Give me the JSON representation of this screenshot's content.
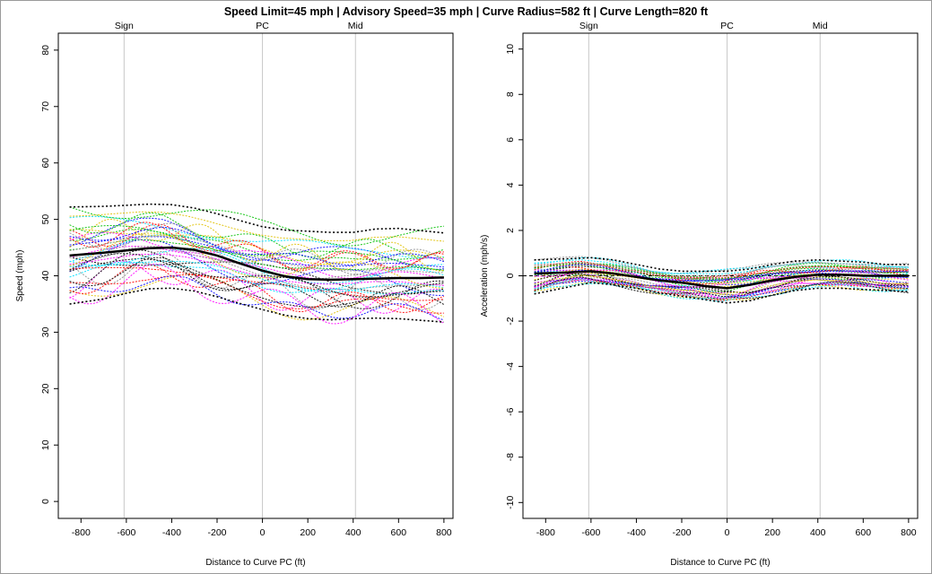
{
  "title": "Speed Limit=45 mph | Advisory Speed=35 mph | Curve Radius=582 ft | Curve Length=820 ft",
  "colors": {
    "mean": "#000000",
    "percentile": "#000000",
    "reference_line": "#c8c8c8",
    "trace_palette": [
      "#ff0000",
      "#00c000",
      "#0000ff",
      "#00e0ff",
      "#ff00ff",
      "#e0c000",
      "#909090",
      "#000000"
    ]
  },
  "chart_data": [
    {
      "type": "line",
      "panel": "speed",
      "xlabel": "Distance to Curve PC (ft)",
      "ylabel": "Speed (mph)",
      "xlim": [
        -900,
        840
      ],
      "ylim": [
        -3,
        83
      ],
      "x_ticks": [
        -800,
        -600,
        -400,
        -200,
        0,
        200,
        400,
        600,
        800
      ],
      "y_ticks": [
        0,
        10,
        20,
        30,
        40,
        50,
        60,
        70,
        80
      ],
      "grid": false,
      "reference_lines": [
        {
          "label": "Sign",
          "x": -610
        },
        {
          "label": "PC",
          "x": 0
        },
        {
          "label": "Mid",
          "x": 410
        }
      ],
      "x": [
        -850,
        -700,
        -600,
        -500,
        -400,
        -300,
        -200,
        -100,
        0,
        100,
        200,
        300,
        400,
        500,
        600,
        700,
        800
      ],
      "series": [
        {
          "role": "mean",
          "values": [
            43.6,
            44.1,
            44.5,
            44.9,
            45.0,
            44.6,
            43.6,
            42.2,
            40.9,
            39.9,
            39.4,
            39.3,
            39.4,
            39.5,
            39.6,
            39.6,
            39.7
          ]
        },
        {
          "role": "upper",
          "values": [
            52.2,
            52.3,
            52.5,
            52.7,
            52.6,
            52.0,
            51.0,
            49.8,
            48.7,
            48.1,
            47.9,
            47.7,
            47.7,
            48.3,
            48.4,
            48.0,
            47.6
          ]
        },
        {
          "role": "lower",
          "values": [
            35.0,
            35.9,
            36.9,
            37.7,
            37.8,
            37.3,
            36.3,
            35.1,
            34.0,
            33.0,
            32.4,
            32.2,
            32.4,
            32.5,
            32.4,
            32.1,
            31.8
          ]
        }
      ]
    },
    {
      "type": "line",
      "panel": "acceleration",
      "xlabel": "Distance to Curve PC (ft)",
      "ylabel": "Acceleration (mph/s)",
      "xlim": [
        -900,
        840
      ],
      "ylim": [
        -10.7,
        10.7
      ],
      "x_ticks": [
        -800,
        -600,
        -400,
        -200,
        0,
        200,
        400,
        600,
        800
      ],
      "y_ticks": [
        -10,
        -8,
        -6,
        -4,
        -2,
        0,
        2,
        4,
        6,
        8,
        10
      ],
      "grid": false,
      "zero_line": true,
      "reference_lines": [
        {
          "label": "Sign",
          "x": -610
        },
        {
          "label": "PC",
          "x": 0
        },
        {
          "label": "Mid",
          "x": 410
        }
      ],
      "x": [
        -850,
        -700,
        -600,
        -500,
        -400,
        -300,
        -200,
        -100,
        0,
        100,
        200,
        300,
        400,
        500,
        600,
        700,
        800
      ],
      "series": [
        {
          "role": "mean",
          "values": [
            0.1,
            0.15,
            0.2,
            0.1,
            -0.05,
            -0.2,
            -0.3,
            -0.45,
            -0.55,
            -0.4,
            -0.2,
            -0.05,
            0.05,
            0.05,
            0.0,
            0.0,
            0.0
          ]
        },
        {
          "role": "upper",
          "values": [
            0.7,
            0.75,
            0.8,
            0.7,
            0.5,
            0.3,
            0.2,
            0.2,
            0.2,
            0.3,
            0.5,
            0.65,
            0.7,
            0.65,
            0.6,
            0.5,
            0.5
          ]
        },
        {
          "role": "lower",
          "values": [
            -0.8,
            -0.5,
            -0.3,
            -0.4,
            -0.55,
            -0.75,
            -0.9,
            -1.05,
            -1.2,
            -1.1,
            -0.85,
            -0.65,
            -0.55,
            -0.55,
            -0.6,
            -0.65,
            -0.7
          ]
        }
      ]
    }
  ]
}
